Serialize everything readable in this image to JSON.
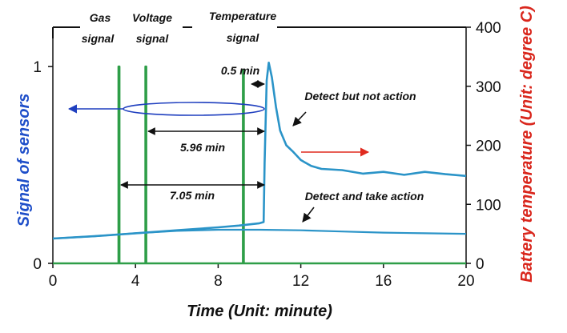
{
  "chart_data": {
    "type": "line",
    "xlabel": "Time (Unit: minute)",
    "ylabel_left": "Signal of sensors",
    "ylabel_right": "Battery temperature (Unit: degree C)",
    "x_ticks": [
      "0",
      "4",
      "8",
      "12",
      "16",
      "20"
    ],
    "y_left_ticks": [
      "0",
      "1"
    ],
    "y_right_ticks": [
      "0",
      "100",
      "200",
      "300",
      "400"
    ],
    "xlim": [
      0,
      20
    ],
    "ylim_left": [
      0,
      1.2
    ],
    "ylim_right": [
      0,
      400
    ],
    "colors": {
      "sensor_signal": "#2e9e48",
      "temperature_curve": "#2b94c8",
      "left_label": "#1f4fc9",
      "right_label": "#d9261c",
      "ellipse": "#1f3fbf",
      "left_arrow": "#1f3fbf",
      "right_arrow": "#e02a1f"
    },
    "header_labels": {
      "gas": [
        "Gas",
        "signal"
      ],
      "voltage": [
        "Voltage",
        "signal"
      ],
      "temperature": [
        "Temperature",
        "signal"
      ]
    },
    "series": [
      {
        "axis": "left",
        "x": [
          0,
          3.18,
          3.18,
          3.22,
          3.22,
          4.48,
          4.48,
          4.52,
          4.52,
          9.2,
          9.2,
          9.24,
          9.24,
          20
        ],
        "y": [
          0,
          0,
          1.0,
          1.0,
          0,
          0,
          1.0,
          1.0,
          0,
          0,
          0.98,
          0.98,
          0,
          0
        ]
      },
      {
        "axis": "right",
        "x": [
          0,
          2,
          4,
          6,
          8,
          9,
          10,
          10.2,
          10.25,
          10.35,
          10.45,
          10.6,
          10.8,
          11,
          11.3,
          11.6,
          12,
          12.5,
          13,
          14,
          15,
          16,
          17,
          18,
          19,
          20
        ],
        "y": [
          42,
          46,
          51,
          56,
          61,
          64,
          68,
          70,
          170,
          310,
          340,
          315,
          265,
          225,
          200,
          190,
          175,
          165,
          160,
          158,
          152,
          155,
          150,
          155,
          151,
          148
        ]
      },
      {
        "axis": "right",
        "x": [
          0,
          2,
          4,
          6,
          8,
          10,
          12,
          14,
          16,
          18,
          20
        ],
        "y": [
          42,
          46,
          51,
          55,
          57,
          57,
          56,
          54,
          52,
          51,
          50
        ]
      }
    ],
    "annotations": {
      "half_min": "0.5 min",
      "detect_not_action": "Detect but not action",
      "interval_596": "5.96 min",
      "interval_705": "7.05 min",
      "detect_action": "Detect and take action"
    }
  }
}
